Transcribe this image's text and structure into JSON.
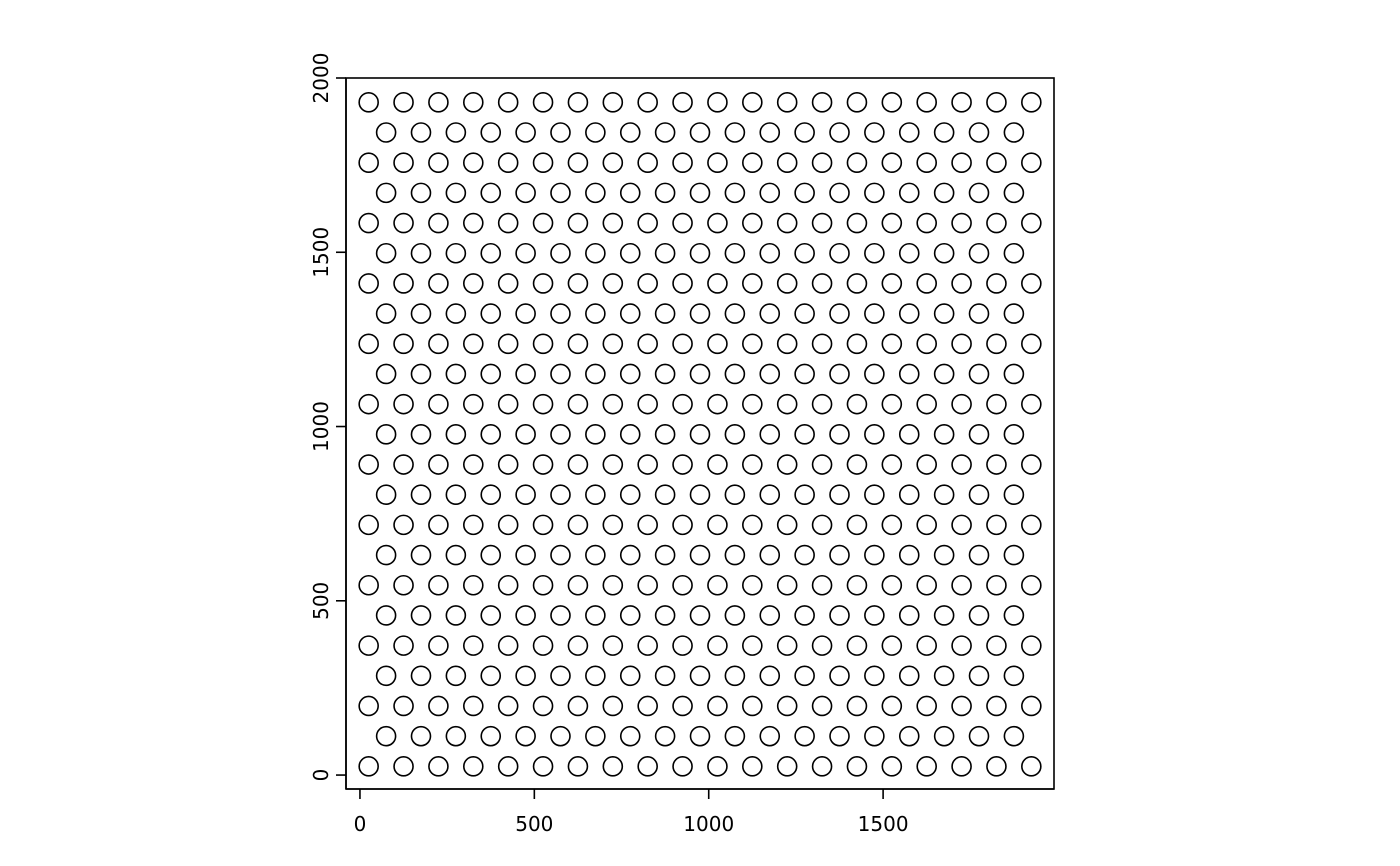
{
  "chart_data": {
    "type": "scatter",
    "title": "",
    "xlabel": "",
    "ylabel": "",
    "xlim": [
      -40,
      1990
    ],
    "ylim": [
      -40,
      2000
    ],
    "x_ticks": [
      0,
      500,
      1000,
      1500
    ],
    "y_ticks": [
      0,
      500,
      1000,
      1500,
      2000
    ],
    "x_tick_labels": [
      "0",
      "500",
      "1000",
      "1500"
    ],
    "y_tick_labels": [
      "0",
      "500",
      "1000",
      "1500",
      "2000"
    ],
    "marker": "open-circle",
    "grid": false,
    "legend": "none",
    "pattern": {
      "description": "hexagonal lattice of points",
      "even_rows_x_start": 25,
      "even_rows_x_step": 100,
      "even_rows_count": 20,
      "odd_rows_x_start": 75,
      "odd_rows_x_step": 100,
      "odd_rows_count": 19,
      "y_start": 25,
      "y_step": 86.6,
      "rows": 23
    }
  }
}
